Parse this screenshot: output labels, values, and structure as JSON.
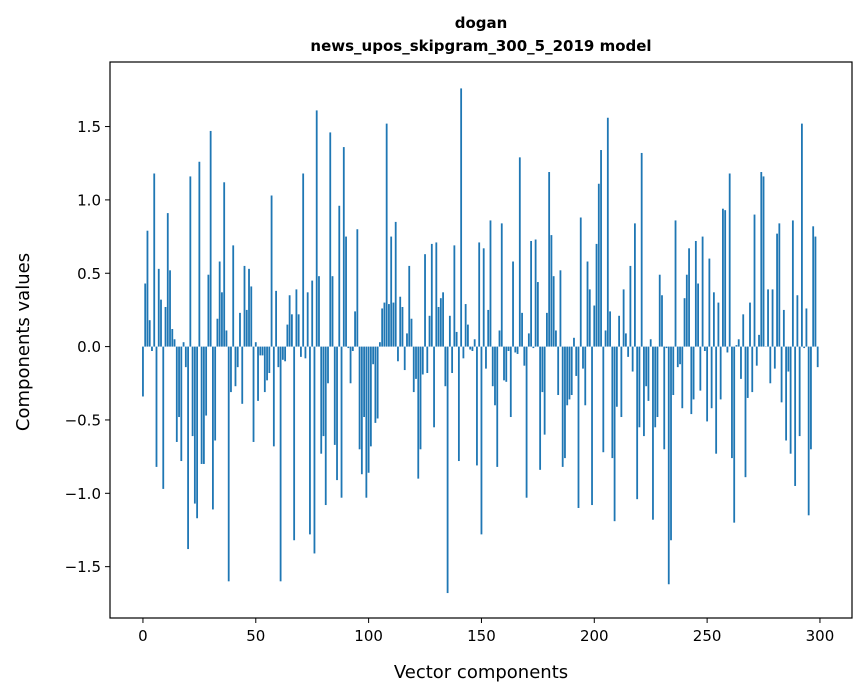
{
  "chart_data": {
    "type": "bar",
    "title": "dogan",
    "subtitle": "news_upos_skipgram_300_5_2019 model",
    "xlabel": "Vector components",
    "ylabel": "Components values",
    "xlim": [
      -14.6,
      314.2
    ],
    "ylim": [
      -1.85,
      1.94
    ],
    "xticks": [
      0,
      50,
      100,
      150,
      200,
      250,
      300
    ],
    "xtick_labels": [
      "0",
      "50",
      "100",
      "150",
      "200",
      "250",
      "300"
    ],
    "yticks": [
      -1.5,
      -1.0,
      -0.5,
      0.0,
      0.5,
      1.0,
      1.5
    ],
    "ytick_labels": [
      "−1.5",
      "−1.0",
      "−0.5",
      "0.0",
      "0.5",
      "1.0",
      "1.5"
    ],
    "grid": false,
    "bar_color": "#1f77b4",
    "values": [
      -0.34,
      0.43,
      0.79,
      0.18,
      -0.03,
      1.18,
      -0.82,
      0.53,
      0.32,
      -0.97,
      0.27,
      0.91,
      0.52,
      0.12,
      0.05,
      -0.65,
      -0.48,
      -0.78,
      0.03,
      -0.14,
      -1.38,
      1.16,
      -0.61,
      -1.07,
      -1.17,
      1.26,
      -0.8,
      -0.8,
      -0.47,
      0.49,
      1.47,
      -1.11,
      -0.64,
      0.19,
      0.58,
      0.37,
      1.12,
      0.11,
      -1.6,
      -0.31,
      0.69,
      -0.27,
      -0.14,
      0.23,
      -0.39,
      0.55,
      0.25,
      0.53,
      0.41,
      -0.65,
      0.03,
      -0.37,
      -0.06,
      -0.06,
      -0.31,
      -0.23,
      -0.18,
      1.03,
      -0.68,
      0.38,
      -0.14,
      -1.6,
      -0.09,
      -0.1,
      0.15,
      0.35,
      0.22,
      -1.32,
      0.39,
      0.22,
      -0.07,
      1.18,
      -0.08,
      0.37,
      -1.28,
      0.45,
      -1.41,
      1.61,
      0.48,
      -0.73,
      -0.61,
      -1.08,
      -0.25,
      1.46,
      0.48,
      -0.67,
      -0.91,
      0.96,
      -1.03,
      1.36,
      0.75,
      -0.01,
      -0.25,
      -0.03,
      0.24,
      0.8,
      -0.7,
      -0.87,
      -0.48,
      -1.03,
      -0.86,
      -0.68,
      -0.12,
      -0.52,
      -0.49,
      0.03,
      0.26,
      0.3,
      1.52,
      0.29,
      0.75,
      0.3,
      0.85,
      -0.1,
      0.34,
      0.27,
      -0.16,
      0.09,
      0.55,
      0.19,
      -0.31,
      -0.22,
      -0.9,
      -0.7,
      -0.19,
      0.63,
      -0.18,
      0.21,
      0.7,
      -0.55,
      0.71,
      0.27,
      0.33,
      0.37,
      -0.27,
      -1.68,
      0.21,
      -0.18,
      0.69,
      0.1,
      -0.78,
      1.76,
      -0.08,
      0.29,
      0.15,
      -0.02,
      -0.03,
      0.05,
      -0.81,
      0.71,
      -1.28,
      0.67,
      -0.15,
      0.25,
      0.86,
      -0.27,
      -0.4,
      -0.82,
      0.11,
      0.84,
      -0.23,
      -0.24,
      -0.03,
      -0.48,
      0.58,
      -0.04,
      -0.05,
      1.29,
      0.23,
      -0.13,
      -1.03,
      0.09,
      0.72,
      -0.01,
      0.73,
      0.44,
      -0.84,
      -0.31,
      -0.6,
      0.23,
      1.19,
      0.76,
      0.48,
      0.11,
      -0.33,
      0.52,
      -0.82,
      -0.76,
      -0.4,
      -0.36,
      -0.33,
      0.06,
      -0.2,
      -1.1,
      0.88,
      -0.15,
      -0.4,
      0.58,
      0.39,
      -1.08,
      0.28,
      0.7,
      1.11,
      1.34,
      -0.72,
      0.11,
      1.56,
      0.24,
      -0.76,
      -1.19,
      -0.41,
      0.21,
      -0.48,
      0.39,
      0.09,
      -0.07,
      0.55,
      -0.17,
      0.84,
      -1.04,
      -0.55,
      1.32,
      -0.61,
      -0.27,
      -0.37,
      0.05,
      -1.18,
      -0.55,
      -0.48,
      0.49,
      0.35,
      -0.7,
      -0.01,
      -1.62,
      -1.32,
      -0.33,
      0.86,
      -0.14,
      -0.12,
      -0.42,
      0.33,
      0.49,
      0.67,
      -0.46,
      -0.36,
      0.72,
      0.43,
      -0.3,
      0.75,
      -0.03,
      -0.51,
      0.6,
      -0.42,
      0.37,
      -0.73,
      0.3,
      -0.36,
      0.94,
      0.93,
      -0.04,
      1.18,
      -0.76,
      -1.2,
      0.01,
      0.05,
      -0.22,
      0.22,
      -0.89,
      -0.35,
      0.3,
      -0.31,
      0.9,
      -0.13,
      0.08,
      1.19,
      1.16,
      0.0,
      0.39,
      -0.25,
      0.39,
      -0.15,
      0.77,
      0.84,
      -0.38,
      0.25,
      -0.64,
      -0.17,
      -0.73,
      0.86,
      -0.95,
      0.35,
      -0.61,
      1.52,
      -0.01,
      0.26,
      -1.15,
      -0.7,
      0.82,
      0.75,
      -0.14
    ]
  }
}
